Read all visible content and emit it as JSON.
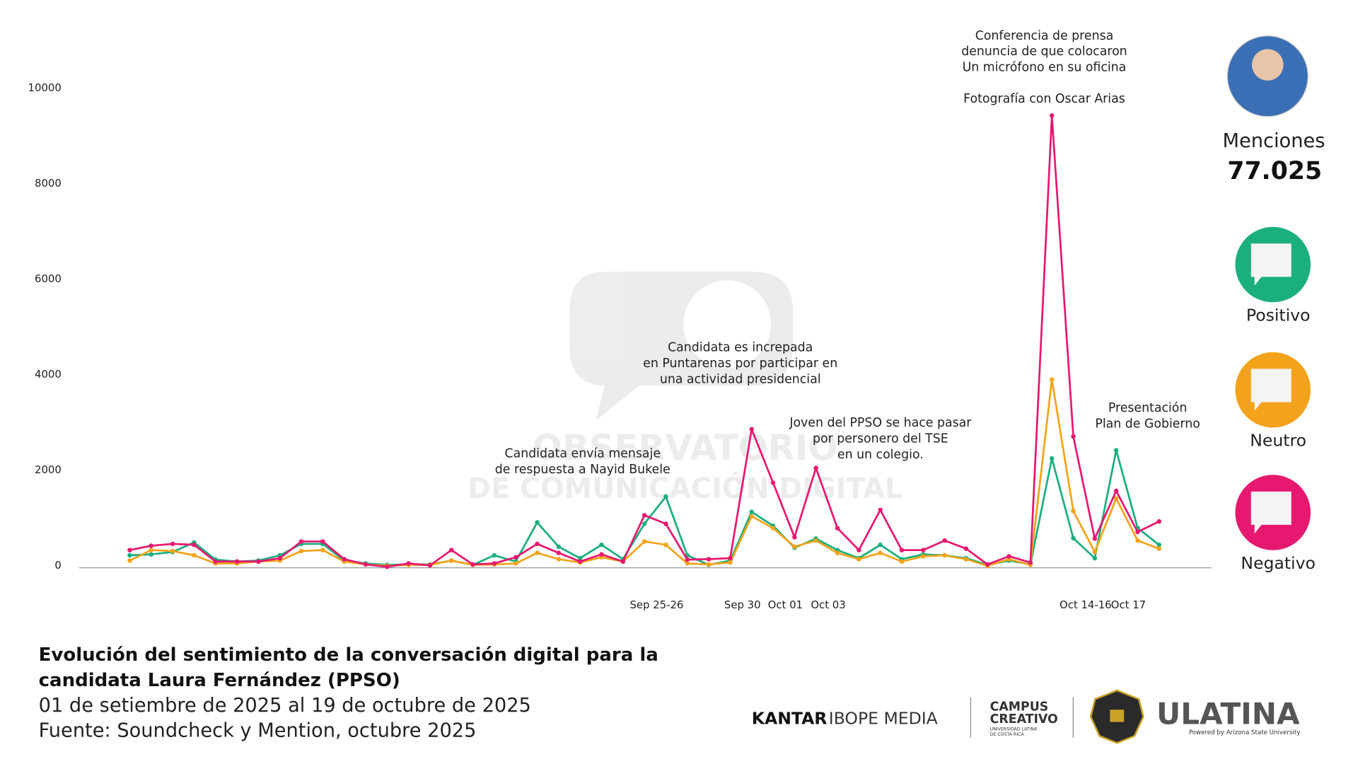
{
  "chart_data": {
    "type": "line",
    "categories": [
      null,
      null,
      null,
      null,
      null,
      null,
      null,
      null,
      null,
      null,
      null,
      null,
      null,
      null,
      null,
      null,
      null,
      null,
      null,
      null,
      null,
      null,
      null,
      null,
      "Sep 25-26",
      null,
      null,
      null,
      "Sep 30",
      null,
      "Oct 01",
      null,
      "Oct 03",
      null,
      null,
      null,
      null,
      null,
      null,
      null,
      null,
      null,
      null,
      null,
      "Oct 14-16",
      null,
      "Oct 17",
      null,
      null
    ],
    "ylim": [
      0,
      10000
    ],
    "yticks": [
      0,
      2000,
      4000,
      6000,
      8000,
      10000
    ],
    "series": [
      {
        "name": "Positivo",
        "color": "#1bae7f",
        "values": [
          260,
          280,
          330,
          530,
          170,
          130,
          150,
          260,
          500,
          500,
          150,
          90,
          60,
          70,
          70,
          150,
          60,
          260,
          130,
          950,
          440,
          200,
          480,
          180,
          920,
          1490,
          260,
          60,
          150,
          1170,
          880,
          420,
          610,
          370,
          200,
          480,
          180,
          280,
          260,
          200,
          60,
          150,
          70,
          2290,
          620,
          200,
          2460,
          830,
          480
        ]
      },
      {
        "name": "Neutro",
        "color": "#f2a31b",
        "values": [
          150,
          370,
          350,
          260,
          90,
          90,
          130,
          150,
          350,
          370,
          130,
          70,
          40,
          60,
          60,
          150,
          60,
          70,
          90,
          310,
          180,
          110,
          220,
          130,
          550,
          480,
          90,
          70,
          110,
          1080,
          830,
          440,
          570,
          310,
          180,
          310,
          130,
          240,
          260,
          180,
          40,
          180,
          60,
          3940,
          1190,
          330,
          1450,
          570,
          400
        ]
      },
      {
        "name": "Negativo",
        "color": "#e6186f",
        "values": [
          370,
          460,
          500,
          480,
          130,
          130,
          130,
          200,
          550,
          550,
          180,
          70,
          20,
          90,
          50,
          370,
          70,
          90,
          220,
          500,
          310,
          130,
          280,
          130,
          1100,
          920,
          170,
          180,
          200,
          2900,
          1780,
          640,
          2090,
          830,
          370,
          1210,
          370,
          370,
          570,
          400,
          70,
          240,
          110,
          9470,
          2750,
          610,
          1610,
          750,
          970
        ]
      }
    ],
    "annotations": [
      {
        "lines": [
          "Candidata envía mensaje",
          "de respuesta a Nayid Bukele"
        ]
      },
      {
        "lines": [
          "Candidata es increpada",
          "en Puntarenas por participar en",
          "una actividad presidencial"
        ]
      },
      {
        "lines": [
          "Joven del PPSO se hace pasar",
          "por personero del TSE",
          "en un colegio."
        ]
      },
      {
        "lines": [
          "Conferencia de prensa",
          "denuncia de que colocaron",
          "Un micrófono en su oficina"
        ]
      },
      {
        "lines": [
          "Fotografía con Oscar Arias"
        ]
      },
      {
        "lines": [
          "Presentación",
          "Plan de Gobierno"
        ]
      }
    ],
    "title": [
      "Evolución del sentimiento de la conversación digital para la",
      "candidata Laura Fernández (PPSO)"
    ],
    "subtitle": [
      "01 de setiembre de 2025 al 19 de octubre de 2025",
      "Fuente: Soundcheck y Mention, octubre 2025"
    ]
  },
  "side_panel": {
    "mentions_label": "Menciones",
    "mentions_total": "77.025"
  },
  "watermark": [
    "OBSERVATORIO",
    "DE COMUNICACIÓN DIGITAL"
  ],
  "logos": {
    "kantar": "KANTAR",
    "ibope": "IBOPE MEDIA",
    "campus": [
      "CAMPUS",
      "CREATIVO"
    ],
    "campus_sub": [
      "UNIVERSIDAD LATINA",
      "DE COSTA RICA"
    ],
    "ulatina": "ULATINA",
    "ulatina_sub": "Powered by Arizona State University"
  }
}
